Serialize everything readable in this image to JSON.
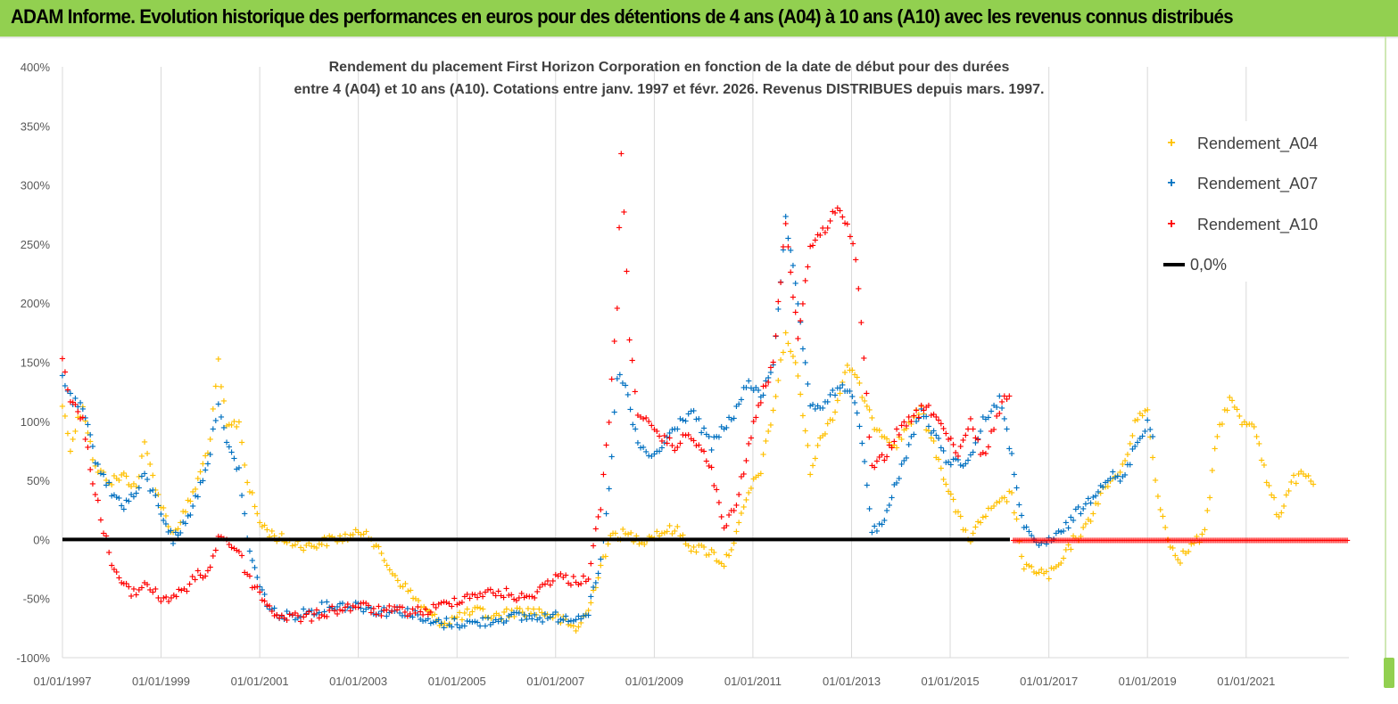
{
  "banner": {
    "title": "ADAM Informe. Evolution historique des performances en euros pour des détentions de 4 ans (A04) à 10 ans (A10) avec les revenus connus distribués"
  },
  "chart_data": {
    "type": "scatter",
    "title_lines": [
      "Rendement du placement First Horizon Corporation en fonction de la date de début pour des durées",
      "entre 4 (A04) et 10 ans (A10).  Cotations entre janv. 1997 et févr. 2026. Revenus  DISTRIBUES depuis mars. 1997."
    ],
    "x_axis": {
      "type": "date",
      "range": [
        "1997-01-01",
        "2023-02-01"
      ],
      "tick_labels": [
        "01/01/1997",
        "01/01/1999",
        "01/01/2001",
        "01/01/2003",
        "01/01/2005",
        "01/01/2007",
        "01/01/2009",
        "01/01/2011",
        "01/01/2013",
        "01/01/2015",
        "01/01/2017",
        "01/01/2019",
        "01/01/2021"
      ]
    },
    "y_axis": {
      "range": [
        -100,
        400
      ],
      "unit": "%",
      "tick_labels": [
        "400%",
        "350%",
        "300%",
        "250%",
        "200%",
        "150%",
        "100%",
        "50%",
        "0%",
        "-50%",
        "-100%"
      ]
    },
    "grid": {
      "vertical": true,
      "horizontal": false
    },
    "legend_position": "top-right",
    "series": [
      {
        "name": "Rendement_A04",
        "color": "#ffc000",
        "marker": "plus",
        "points": [
          [
            "1997-01-01",
            115
          ],
          [
            "1997-03-01",
            80
          ],
          [
            "1997-06-01",
            115
          ],
          [
            "1997-09-01",
            60
          ],
          [
            "1998-01-01",
            50
          ],
          [
            "1998-04-01",
            55
          ],
          [
            "1998-07-01",
            45
          ],
          [
            "1998-09-01",
            80
          ],
          [
            "1999-01-01",
            30
          ],
          [
            "1999-04-01",
            5
          ],
          [
            "1999-07-01",
            25
          ],
          [
            "1999-10-01",
            50
          ],
          [
            "2000-01-01",
            85
          ],
          [
            "2000-03-01",
            150
          ],
          [
            "2000-05-01",
            95
          ],
          [
            "2000-08-01",
            100
          ],
          [
            "2000-10-01",
            50
          ],
          [
            "2001-01-01",
            15
          ],
          [
            "2001-04-01",
            5
          ],
          [
            "2001-07-01",
            0
          ],
          [
            "2002-01-01",
            -5
          ],
          [
            "2002-06-01",
            0
          ],
          [
            "2003-01-01",
            5
          ],
          [
            "2003-03-01",
            10
          ],
          [
            "2003-06-01",
            -10
          ],
          [
            "2003-10-01",
            -30
          ],
          [
            "2004-03-01",
            -50
          ],
          [
            "2004-07-01",
            -65
          ],
          [
            "2004-10-01",
            -70
          ],
          [
            "2005-01-01",
            -65
          ],
          [
            "2005-06-01",
            -60
          ],
          [
            "2005-10-01",
            -65
          ],
          [
            "2006-03-01",
            -60
          ],
          [
            "2006-09-01",
            -60
          ],
          [
            "2007-01-01",
            -65
          ],
          [
            "2007-06-01",
            -75
          ],
          [
            "2007-09-01",
            -60
          ],
          [
            "2007-12-01",
            -20
          ],
          [
            "2008-03-01",
            5
          ],
          [
            "2008-06-01",
            5
          ],
          [
            "2008-10-01",
            0
          ],
          [
            "2009-01-01",
            5
          ],
          [
            "2009-06-01",
            10
          ],
          [
            "2009-10-01",
            -5
          ],
          [
            "2010-03-01",
            -10
          ],
          [
            "2010-06-01",
            -20
          ],
          [
            "2010-09-01",
            5
          ],
          [
            "2010-12-01",
            40
          ],
          [
            "2011-03-01",
            60
          ],
          [
            "2011-06-01",
            110
          ],
          [
            "2011-09-01",
            175
          ],
          [
            "2011-12-01",
            140
          ],
          [
            "2012-03-01",
            60
          ],
          [
            "2012-06-01",
            90
          ],
          [
            "2012-09-01",
            110
          ],
          [
            "2012-12-01",
            150
          ],
          [
            "2013-03-01",
            130
          ],
          [
            "2013-06-01",
            100
          ],
          [
            "2013-09-01",
            90
          ],
          [
            "2013-12-01",
            80
          ],
          [
            "2014-03-01",
            100
          ],
          [
            "2014-06-01",
            110
          ],
          [
            "2014-09-01",
            80
          ],
          [
            "2014-12-01",
            50
          ],
          [
            "2015-03-01",
            20
          ],
          [
            "2015-06-01",
            0
          ],
          [
            "2015-09-01",
            20
          ],
          [
            "2016-01-01",
            30
          ],
          [
            "2016-04-01",
            40
          ],
          [
            "2016-07-01",
            -25
          ],
          [
            "2016-10-01",
            -25
          ],
          [
            "2017-01-01",
            -30
          ],
          [
            "2017-04-01",
            -20
          ],
          [
            "2017-07-01",
            0
          ],
          [
            "2017-10-01",
            10
          ],
          [
            "2018-01-01",
            35
          ],
          [
            "2018-04-01",
            50
          ],
          [
            "2018-07-01",
            60
          ],
          [
            "2018-10-01",
            100
          ],
          [
            "2019-01-01",
            110
          ],
          [
            "2019-03-01",
            50
          ],
          [
            "2019-06-01",
            0
          ],
          [
            "2019-09-01",
            -15
          ],
          [
            "2020-01-01",
            0
          ],
          [
            "2020-03-01",
            5
          ],
          [
            "2020-06-01",
            90
          ],
          [
            "2020-09-01",
            120
          ],
          [
            "2020-12-01",
            100
          ],
          [
            "2021-03-01",
            100
          ],
          [
            "2021-06-01",
            50
          ],
          [
            "2021-09-01",
            20
          ],
          [
            "2021-12-01",
            50
          ],
          [
            "2022-03-01",
            55
          ],
          [
            "2022-06-01",
            45
          ]
        ]
      },
      {
        "name": "Rendement_A07",
        "color": "#0070c0",
        "marker": "plus",
        "points": [
          [
            "1997-01-01",
            140
          ],
          [
            "1997-03-01",
            120
          ],
          [
            "1997-06-01",
            110
          ],
          [
            "1997-09-01",
            70
          ],
          [
            "1998-01-01",
            40
          ],
          [
            "1998-04-01",
            30
          ],
          [
            "1998-07-01",
            40
          ],
          [
            "1998-09-01",
            55
          ],
          [
            "1999-01-01",
            25
          ],
          [
            "1999-04-01",
            0
          ],
          [
            "1999-07-01",
            15
          ],
          [
            "1999-10-01",
            40
          ],
          [
            "2000-01-01",
            75
          ],
          [
            "2000-03-01",
            120
          ],
          [
            "2000-05-01",
            80
          ],
          [
            "2000-08-01",
            60
          ],
          [
            "2000-10-01",
            0
          ],
          [
            "2001-01-01",
            -40
          ],
          [
            "2001-04-01",
            -60
          ],
          [
            "2001-07-01",
            -65
          ],
          [
            "2002-01-01",
            -60
          ],
          [
            "2002-06-01",
            -55
          ],
          [
            "2003-01-01",
            -55
          ],
          [
            "2003-06-01",
            -60
          ],
          [
            "2004-01-01",
            -60
          ],
          [
            "2004-06-01",
            -70
          ],
          [
            "2005-01-01",
            -70
          ],
          [
            "2005-06-01",
            -70
          ],
          [
            "2006-01-01",
            -65
          ],
          [
            "2006-06-01",
            -65
          ],
          [
            "2007-01-01",
            -65
          ],
          [
            "2007-06-01",
            -65
          ],
          [
            "2007-09-01",
            -60
          ],
          [
            "2007-12-01",
            -20
          ],
          [
            "2008-02-01",
            40
          ],
          [
            "2008-04-01",
            140
          ],
          [
            "2008-06-01",
            130
          ],
          [
            "2008-09-01",
            80
          ],
          [
            "2009-01-01",
            70
          ],
          [
            "2009-06-01",
            95
          ],
          [
            "2009-10-01",
            110
          ],
          [
            "2010-03-01",
            80
          ],
          [
            "2010-06-01",
            95
          ],
          [
            "2010-09-01",
            110
          ],
          [
            "2010-12-01",
            135
          ],
          [
            "2011-03-01",
            120
          ],
          [
            "2011-06-01",
            150
          ],
          [
            "2011-09-01",
            270
          ],
          [
            "2011-12-01",
            200
          ],
          [
            "2012-03-01",
            110
          ],
          [
            "2012-06-01",
            115
          ],
          [
            "2012-09-01",
            125
          ],
          [
            "2012-12-01",
            130
          ],
          [
            "2013-03-01",
            100
          ],
          [
            "2013-06-01",
            10
          ],
          [
            "2013-09-01",
            15
          ],
          [
            "2013-12-01",
            50
          ],
          [
            "2014-03-01",
            80
          ],
          [
            "2014-06-01",
            110
          ],
          [
            "2014-09-01",
            90
          ],
          [
            "2014-12-01",
            70
          ],
          [
            "2015-03-01",
            65
          ],
          [
            "2015-06-01",
            70
          ],
          [
            "2015-09-01",
            100
          ],
          [
            "2016-01-01",
            120
          ],
          [
            "2016-04-01",
            70
          ],
          [
            "2016-07-01",
            10
          ],
          [
            "2016-10-01",
            -5
          ],
          [
            "2017-01-01",
            0
          ],
          [
            "2017-04-01",
            5
          ],
          [
            "2017-07-01",
            20
          ],
          [
            "2017-10-01",
            30
          ],
          [
            "2018-01-01",
            45
          ],
          [
            "2018-04-01",
            55
          ],
          [
            "2018-07-01",
            50
          ],
          [
            "2018-10-01",
            80
          ],
          [
            "2019-01-01",
            100
          ],
          [
            "2019-03-01",
            80
          ]
        ]
      },
      {
        "name": "Rendement_A10",
        "color": "#ff0000",
        "marker": "plus",
        "points": [
          [
            "1997-01-01",
            155
          ],
          [
            "1997-03-01",
            120
          ],
          [
            "1997-06-01",
            100
          ],
          [
            "1997-09-01",
            40
          ],
          [
            "1998-01-01",
            -20
          ],
          [
            "1998-04-01",
            -40
          ],
          [
            "1998-07-01",
            -45
          ],
          [
            "1998-09-01",
            -35
          ],
          [
            "1999-01-01",
            -50
          ],
          [
            "1999-06-01",
            -45
          ],
          [
            "1999-10-01",
            -30
          ],
          [
            "2000-01-01",
            -25
          ],
          [
            "2000-03-01",
            5
          ],
          [
            "2000-05-01",
            0
          ],
          [
            "2000-08-01",
            -10
          ],
          [
            "2000-10-01",
            -30
          ],
          [
            "2001-01-01",
            -45
          ],
          [
            "2001-04-01",
            -60
          ],
          [
            "2001-07-01",
            -65
          ],
          [
            "2002-01-01",
            -65
          ],
          [
            "2002-06-01",
            -60
          ],
          [
            "2003-01-01",
            -55
          ],
          [
            "2003-06-01",
            -60
          ],
          [
            "2004-01-01",
            -60
          ],
          [
            "2004-06-01",
            -60
          ],
          [
            "2005-01-01",
            -50
          ],
          [
            "2005-06-01",
            -45
          ],
          [
            "2006-01-01",
            -45
          ],
          [
            "2006-06-01",
            -50
          ],
          [
            "2007-01-01",
            -30
          ],
          [
            "2007-06-01",
            -35
          ],
          [
            "2007-09-01",
            -30
          ],
          [
            "2007-12-01",
            30
          ],
          [
            "2008-02-01",
            100
          ],
          [
            "2008-04-01",
            200
          ],
          [
            "2008-05-01",
            330
          ],
          [
            "2008-07-01",
            170
          ],
          [
            "2008-09-01",
            110
          ],
          [
            "2009-01-01",
            90
          ],
          [
            "2009-06-01",
            80
          ],
          [
            "2009-10-01",
            90
          ],
          [
            "2010-03-01",
            60
          ],
          [
            "2010-06-01",
            10
          ],
          [
            "2010-09-01",
            30
          ],
          [
            "2010-12-01",
            80
          ],
          [
            "2011-03-01",
            120
          ],
          [
            "2011-06-01",
            150
          ],
          [
            "2011-09-01",
            270
          ],
          [
            "2011-12-01",
            170
          ],
          [
            "2012-03-01",
            250
          ],
          [
            "2012-06-01",
            260
          ],
          [
            "2012-09-01",
            280
          ],
          [
            "2012-12-01",
            270
          ],
          [
            "2013-02-01",
            240
          ],
          [
            "2013-06-01",
            60
          ],
          [
            "2013-09-01",
            70
          ],
          [
            "2013-12-01",
            90
          ],
          [
            "2014-03-01",
            100
          ],
          [
            "2014-06-01",
            110
          ],
          [
            "2014-09-01",
            110
          ],
          [
            "2014-12-01",
            90
          ],
          [
            "2015-03-01",
            70
          ],
          [
            "2015-06-01",
            100
          ],
          [
            "2015-09-01",
            70
          ],
          [
            "2016-01-01",
            110
          ],
          [
            "2016-04-01",
            130
          ]
        ]
      },
      {
        "name": "0,0%",
        "color": "#000000",
        "marker": "line",
        "constant": 0
      }
    ]
  }
}
